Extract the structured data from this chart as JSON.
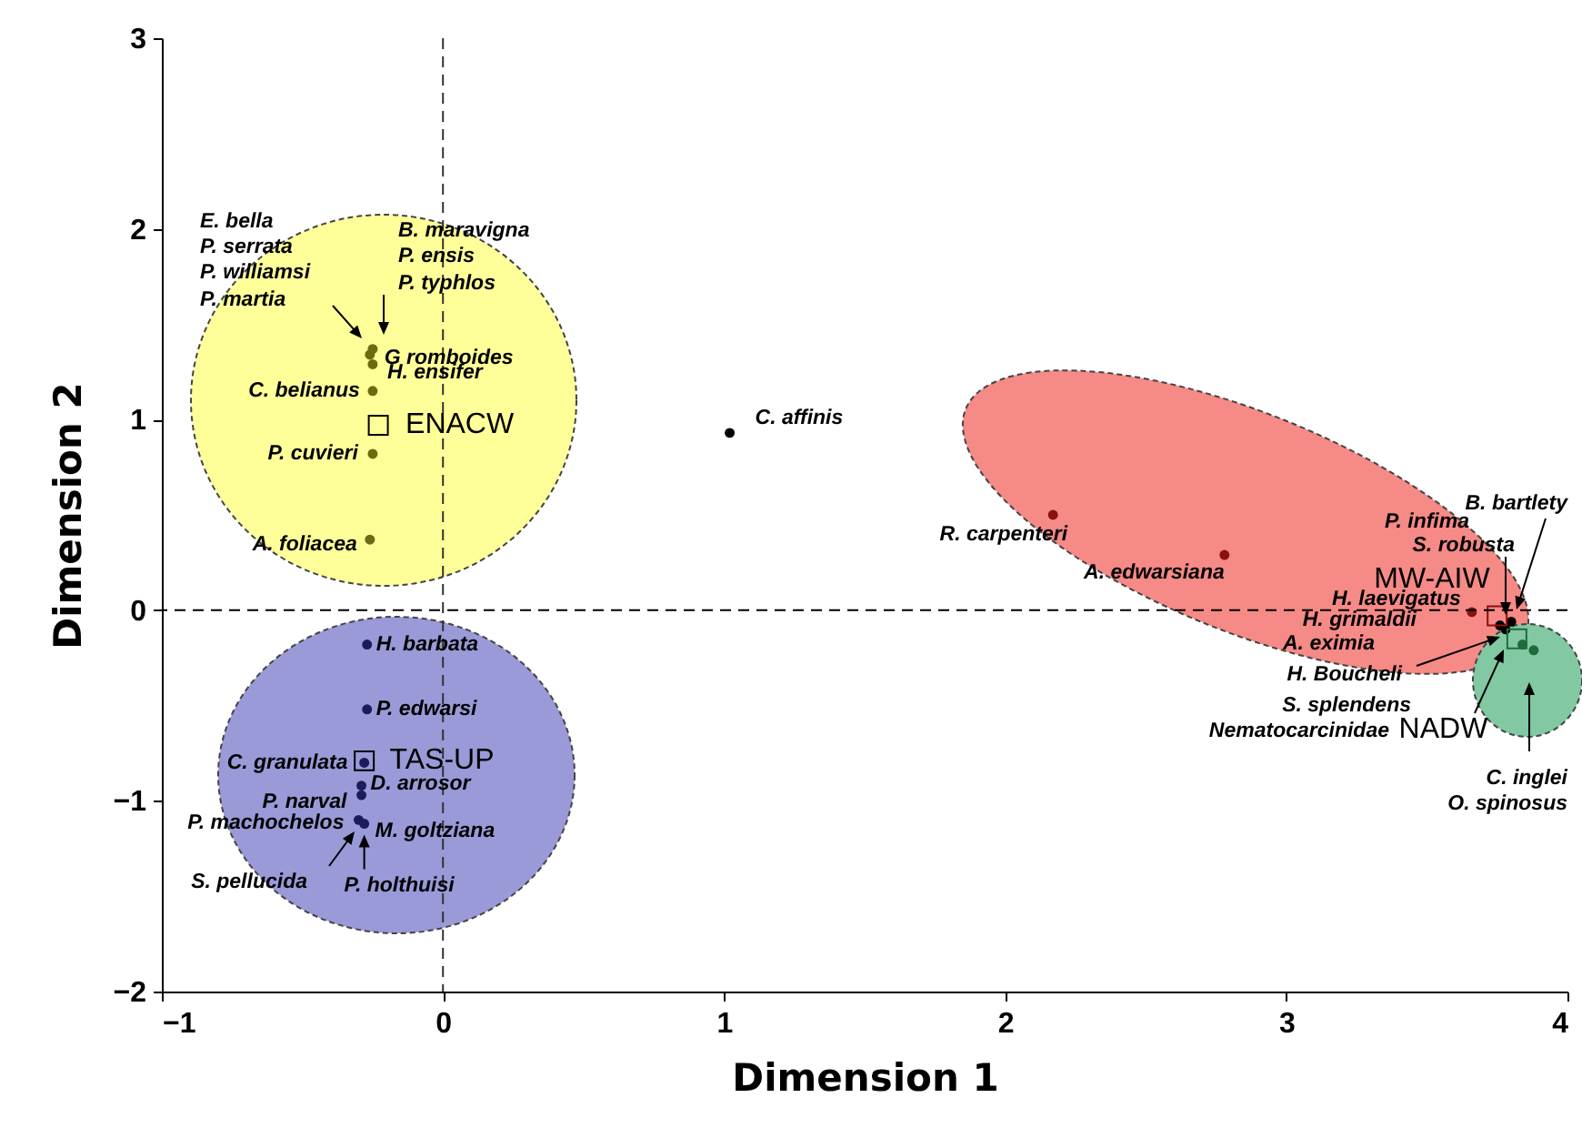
{
  "chart_data": {
    "type": "scatter",
    "xlabel": "Dimension 1",
    "ylabel": "Dimension 2",
    "xlim": [
      -1,
      4
    ],
    "xticks": [
      -1,
      0,
      1,
      2,
      3,
      4
    ],
    "ylim": [
      -2,
      3
    ],
    "yticks": [
      -2,
      -1,
      0,
      1,
      2,
      3
    ],
    "series": [
      {
        "marker": "circle",
        "color": "#6b6b10",
        "x": [
          -0.25,
          -0.26,
          -0.25,
          -0.25,
          -0.25,
          -0.26
        ],
        "values": [
          1.37,
          1.34,
          1.29,
          1.15,
          0.82,
          0.37
        ]
      },
      {
        "marker": "circle",
        "color": "#1c1c5c",
        "x": [
          -0.27,
          -0.27,
          -0.28,
          -0.29,
          -0.29,
          -0.3,
          -0.28
        ],
        "values": [
          -0.18,
          -0.52,
          -0.8,
          -0.92,
          -0.97,
          -1.1,
          -1.12
        ]
      },
      {
        "marker": "circle",
        "color": "#8b1010",
        "x": [
          2.17,
          2.78,
          3.66
        ],
        "values": [
          0.5,
          0.29,
          -0.01
        ]
      },
      {
        "marker": "circle",
        "color": "#000000",
        "x": [
          1.02,
          3.8,
          3.78,
          3.76
        ],
        "values": [
          0.93,
          -0.06,
          -0.1,
          -0.08
        ]
      },
      {
        "marker": "circle",
        "color": "#1e6b3c",
        "x": [
          3.84,
          3.88
        ],
        "values": [
          -0.18,
          -0.21
        ]
      },
      {
        "marker": "square",
        "colors": [
          "#000000",
          "#000000",
          "#8b1010",
          "#1e6b3c"
        ],
        "x": [
          -0.23,
          -0.28,
          3.75,
          3.82
        ],
        "values": [
          0.97,
          -0.79,
          -0.03,
          -0.15
        ]
      }
    ],
    "ref_lines": [
      {
        "axis": "x",
        "value": 0,
        "color": "#333333",
        "line_style": "dashed"
      },
      {
        "axis": "y",
        "value": 0,
        "color": "#000000",
        "line_style": "dashed"
      }
    ],
    "annotations": [
      "E. bella",
      "P. serrata",
      "P. williamsi",
      "P. martia",
      "B. maravigna",
      "P. ensis",
      "P. typhlos",
      {
        "text": "G romboides",
        "x": -0.26,
        "y": 1.34
      },
      {
        "text": "H. ensifer",
        "x": -0.25,
        "y": 1.29
      },
      {
        "text": "C. belianus",
        "x": -0.25,
        "y": 1.15
      },
      {
        "text": "P. cuvieri",
        "x": -0.25,
        "y": 0.82
      },
      {
        "text": "A. foliacea",
        "x": -0.26,
        "y": 0.37
      },
      {
        "text": "ENACW",
        "x": -0.23,
        "y": 0.97
      },
      {
        "text": "H. barbata",
        "x": -0.27,
        "y": -0.18
      },
      {
        "text": "P. edwarsi",
        "x": -0.27,
        "y": -0.52
      },
      {
        "text": "C. granulata",
        "x": -0.28,
        "y": -0.8
      },
      {
        "text": "TAS-UP",
        "x": -0.28,
        "y": -0.79
      },
      {
        "text": "D. arrosor",
        "x": -0.29,
        "y": -0.92
      },
      {
        "text": "P. narval",
        "x": -0.29,
        "y": -0.97
      },
      {
        "text": "M. goltziana",
        "x": -0.28,
        "y": -1.12
      },
      {
        "text": "P. machochelos",
        "x": -0.3,
        "y": -1.1
      },
      "S. pellucida",
      {
        "text": "P. holthuisi",
        "x": -0.28,
        "y": -1.12
      },
      {
        "text": "C. affinis",
        "x": 1.02,
        "y": 0.93
      },
      {
        "text": "R. carpenteri",
        "x": 2.17,
        "y": 0.5
      },
      {
        "text": "A. edwarsiana",
        "x": 2.78,
        "y": 0.29
      },
      {
        "text": "MW-AIW",
        "x": 3.75,
        "y": -0.03
      },
      {
        "text": "H. laevigatus",
        "x": 3.66,
        "y": -0.01
      },
      "B. bartlety",
      "P. infima",
      "S. robusta",
      "H. grimaldii",
      "A. eximia",
      "H. Boucheli",
      "S. splendens",
      "Nematocarcinidae",
      {
        "text": "NADW",
        "x": 3.82,
        "y": -0.15
      },
      "C. inglei",
      "O. spinosus"
    ]
  }
}
